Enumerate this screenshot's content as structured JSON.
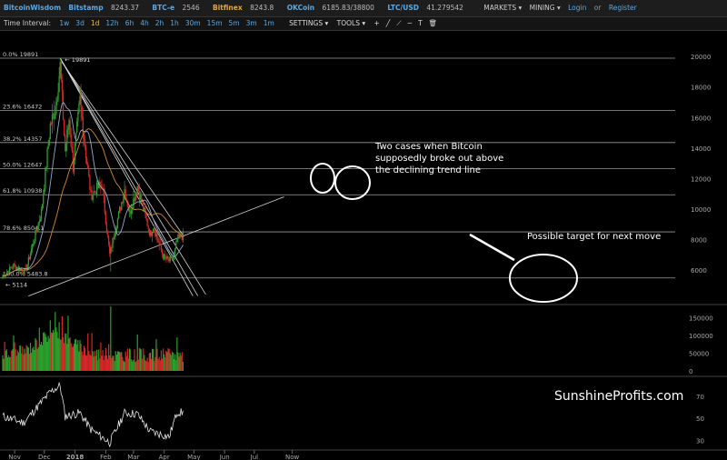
{
  "header": {
    "brand": "BitcoinWisdom",
    "tickers": [
      {
        "name": "Bitstamp",
        "price": "8243.37",
        "color": "#5aa9e6"
      },
      {
        "name": "BTC-e",
        "price": "2546",
        "color": "#5aa9e6"
      },
      {
        "name": "Bitfinex",
        "price": "8243.8",
        "color": "#e8a33c"
      },
      {
        "name": "OKCoin",
        "price": "6185.83/38800",
        "color": "#5aa9e6"
      },
      {
        "name": "LTC/USD",
        "price": "41.279542",
        "color": "#5aa9e6"
      }
    ],
    "markets_label": "MARKETS ▾",
    "mining_label": "MINING ▾",
    "login_label": "Login",
    "or_label": "or",
    "register_label": "Register"
  },
  "toolbar": {
    "time_interval_label": "Time Interval:",
    "intervals": [
      "1w",
      "3d",
      "1d",
      "12h",
      "6h",
      "4h",
      "2h",
      "1h",
      "30m",
      "15m",
      "5m",
      "3m",
      "1m"
    ],
    "active_interval": "1d",
    "settings_label": "SETTINGS ▾",
    "tools_label": "TOOLS ▾",
    "tool_icons": [
      "plus-icon",
      "line-draw-icon",
      "ray-icon",
      "hline-icon",
      "text-icon",
      "trash-icon"
    ]
  },
  "chart_data": {
    "type": "candlestick",
    "instrument": "BTC/USD",
    "price_axis": {
      "ticks": [
        "20000",
        "18000",
        "16000",
        "14000",
        "12000",
        "10000",
        "8000",
        "6000"
      ],
      "ylim": [
        3800,
        21200
      ]
    },
    "time_axis_labels": [
      "Nov",
      "Dec",
      "2018",
      "Feb",
      "Mar",
      "Apr",
      "May",
      "Jun",
      "Jul",
      "Now"
    ],
    "time_axis_bold": "2018",
    "fib_levels": [
      {
        "label": "0.0% 19891",
        "value": 19891
      },
      {
        "label": "23.6% 16472",
        "value": 16472
      },
      {
        "label": "38.2% 14357",
        "value": 14357
      },
      {
        "label": "50.0% 12647",
        "value": 12647
      },
      {
        "label": "61.8% 10938",
        "value": 10938
      },
      {
        "label": "78.6% 8504.1",
        "value": 8504.1
      },
      {
        "label": "100.0% 5483.8",
        "value": 5483.8
      }
    ],
    "high_label": "19891",
    "low_label": "5114",
    "ohlc_waypoints": [
      {
        "date": "2017-10-20",
        "close": 5600
      },
      {
        "date": "2017-10-31",
        "close": 6300
      },
      {
        "date": "2017-11-12",
        "close": 5900
      },
      {
        "date": "2017-11-28",
        "close": 9800
      },
      {
        "date": "2017-12-07",
        "close": 15500
      },
      {
        "date": "2017-12-12",
        "close": 16500
      },
      {
        "date": "2017-12-17",
        "close": 19400
      },
      {
        "date": "2017-12-22",
        "close": 13800
      },
      {
        "date": "2017-12-26",
        "close": 15900
      },
      {
        "date": "2017-12-30",
        "close": 12800
      },
      {
        "date": "2018-01-06",
        "close": 17100
      },
      {
        "date": "2018-01-12",
        "close": 13600
      },
      {
        "date": "2018-01-17",
        "close": 10900
      },
      {
        "date": "2018-01-28",
        "close": 11700
      },
      {
        "date": "2018-02-05",
        "close": 7000
      },
      {
        "date": "2018-02-10",
        "close": 8500
      },
      {
        "date": "2018-02-20",
        "close": 11300
      },
      {
        "date": "2018-02-25",
        "close": 9700
      },
      {
        "date": "2018-03-05",
        "close": 11500
      },
      {
        "date": "2018-03-18",
        "close": 8300
      },
      {
        "date": "2018-03-21",
        "close": 8900
      },
      {
        "date": "2018-03-31",
        "close": 6900
      },
      {
        "date": "2018-04-06",
        "close": 6600
      },
      {
        "date": "2018-04-11",
        "close": 6900
      },
      {
        "date": "2018-04-14",
        "close": 8000
      },
      {
        "date": "2018-04-18",
        "close": 8200
      },
      {
        "date": "2018-04-20",
        "close": 8243
      }
    ],
    "moving_averages": [
      {
        "color": "#9aa8c8",
        "role": "short-ma"
      },
      {
        "color": "#d38a33",
        "role": "long-ma"
      }
    ],
    "trend_lines": [
      {
        "from": {
          "date": "2017-12-17",
          "price": 19891
        },
        "to": {
          "date": "2018-05-05",
          "price": 4300
        }
      },
      {
        "from": {
          "date": "2017-12-17",
          "price": 19891
        },
        "to": {
          "date": "2018-04-30",
          "price": 4300
        }
      },
      {
        "from": {
          "date": "2017-12-17",
          "price": 19891
        },
        "to": {
          "date": "2018-05-13",
          "price": 4400
        }
      },
      {
        "from": {
          "date": "2017-12-18",
          "price": 19700
        },
        "to": {
          "date": "2018-04-21",
          "price": 8200
        }
      },
      {
        "from": {
          "date": "2017-11-15",
          "price": 4300
        },
        "to": {
          "date": "2018-07-31",
          "price": 10800
        }
      }
    ],
    "volume_axis": {
      "ticks": [
        "150000",
        "100000",
        "50000",
        "0"
      ],
      "ylim": [
        0,
        185000
      ]
    },
    "oscillator_axis": {
      "ticks": [
        "70",
        "50",
        "30"
      ],
      "ylim": [
        22,
        85
      ]
    },
    "oscillator_waypoints": [
      {
        "date": "2017-10-20",
        "value": 52
      },
      {
        "date": "2017-11-10",
        "value": 46
      },
      {
        "date": "2017-12-07",
        "value": 74
      },
      {
        "date": "2017-12-17",
        "value": 80
      },
      {
        "date": "2017-12-22",
        "value": 52
      },
      {
        "date": "2018-01-06",
        "value": 55
      },
      {
        "date": "2018-01-17",
        "value": 40
      },
      {
        "date": "2018-02-05",
        "value": 28
      },
      {
        "date": "2018-02-20",
        "value": 55
      },
      {
        "date": "2018-03-05",
        "value": 54
      },
      {
        "date": "2018-03-18",
        "value": 38
      },
      {
        "date": "2018-03-31",
        "value": 35
      },
      {
        "date": "2018-04-06",
        "value": 33
      },
      {
        "date": "2018-04-14",
        "value": 56
      },
      {
        "date": "2018-04-20",
        "value": 55
      }
    ],
    "annotations": [
      {
        "text": "Two cases when Bitcoin supposedly broke out above the declining trend line",
        "lines": [
          "Two cases when Bitcoin",
          "supposedly broke out above",
          "the declining trend line"
        ]
      },
      {
        "text": "Possible target for next move"
      }
    ],
    "watermark": "SunshineProfits.com",
    "up_color": "#2ca02c",
    "down_color": "#d62728"
  }
}
